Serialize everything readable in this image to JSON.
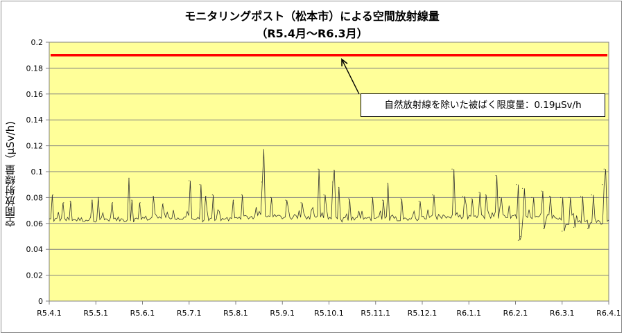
{
  "chart_data": {
    "type": "line",
    "title": "モニタリングポスト（松本市）による空間放射線量",
    "subtitle": "（R5.4月～R6.3月）",
    "xlabel": "",
    "ylabel": "空間放射線量（μSv/h)",
    "ylim": [
      0,
      0.2
    ],
    "yticks": [
      "0",
      "0.02",
      "0.04",
      "0.06",
      "0.08",
      "0.1",
      "0.12",
      "0.14",
      "0.16",
      "0.18",
      "0.2"
    ],
    "xticks": [
      "R5.4.1",
      "R5.5.1",
      "R5.6.1",
      "R5.7.1",
      "R5.8.1",
      "R5.9.1",
      "R5.10.1",
      "R5.11.1",
      "R5.12.1",
      "R6.1.1",
      "R6.2.1",
      "R6.3.1",
      "R6.4.1"
    ],
    "grid": "horizontal",
    "plot_background": "#ffff99",
    "series": [
      {
        "color": "#333333",
        "baseline_by_month": [
          0.063,
          0.063,
          0.064,
          0.063,
          0.065,
          0.065,
          0.063,
          0.064,
          0.065,
          0.065,
          0.064,
          0.061
        ],
        "peaks": [
          {
            "x": 0.08,
            "y": 0.082
          },
          {
            "x": 0.31,
            "y": 0.076
          },
          {
            "x": 0.45,
            "y": 0.077
          },
          {
            "x": 0.92,
            "y": 0.078
          },
          {
            "x": 1.05,
            "y": 0.08
          },
          {
            "x": 1.36,
            "y": 0.076
          },
          {
            "x": 1.71,
            "y": 0.095
          },
          {
            "x": 1.77,
            "y": 0.078
          },
          {
            "x": 1.95,
            "y": 0.076
          },
          {
            "x": 2.23,
            "y": 0.081
          },
          {
            "x": 2.44,
            "y": 0.075
          },
          {
            "x": 3.0,
            "y": 0.093
          },
          {
            "x": 3.23,
            "y": 0.09
          },
          {
            "x": 3.36,
            "y": 0.081
          },
          {
            "x": 3.5,
            "y": 0.082
          },
          {
            "x": 3.95,
            "y": 0.078
          },
          {
            "x": 4.13,
            "y": 0.082
          },
          {
            "x": 4.56,
            "y": 0.092
          },
          {
            "x": 4.6,
            "y": 0.117
          },
          {
            "x": 4.75,
            "y": 0.08
          },
          {
            "x": 5.07,
            "y": 0.078
          },
          {
            "x": 5.4,
            "y": 0.076
          },
          {
            "x": 5.77,
            "y": 0.102
          },
          {
            "x": 5.89,
            "y": 0.082
          },
          {
            "x": 6.08,
            "y": 0.092
          },
          {
            "x": 6.11,
            "y": 0.101
          },
          {
            "x": 6.21,
            "y": 0.088
          },
          {
            "x": 6.42,
            "y": 0.079
          },
          {
            "x": 6.92,
            "y": 0.08
          },
          {
            "x": 7.15,
            "y": 0.078
          },
          {
            "x": 7.26,
            "y": 0.091
          },
          {
            "x": 7.54,
            "y": 0.079
          },
          {
            "x": 7.93,
            "y": 0.077
          },
          {
            "x": 8.22,
            "y": 0.082
          },
          {
            "x": 8.64,
            "y": 0.102
          },
          {
            "x": 8.87,
            "y": 0.081
          },
          {
            "x": 9.05,
            "y": 0.079
          },
          {
            "x": 9.22,
            "y": 0.084
          },
          {
            "x": 9.36,
            "y": 0.082
          },
          {
            "x": 9.58,
            "y": 0.097
          },
          {
            "x": 9.66,
            "y": 0.08
          },
          {
            "x": 10.02,
            "y": 0.09
          },
          {
            "x": 10.15,
            "y": 0.087
          },
          {
            "x": 10.35,
            "y": 0.08
          },
          {
            "x": 10.56,
            "y": 0.085
          },
          {
            "x": 10.73,
            "y": 0.081
          },
          {
            "x": 10.97,
            "y": 0.08
          },
          {
            "x": 11.15,
            "y": 0.08
          },
          {
            "x": 11.4,
            "y": 0.081
          },
          {
            "x": 11.63,
            "y": 0.082
          },
          {
            "x": 11.86,
            "y": 0.09
          },
          {
            "x": 11.9,
            "y": 0.102
          }
        ],
        "dips": [
          {
            "x": 10.06,
            "y": 0.047
          },
          {
            "x": 10.1,
            "y": 0.05
          },
          {
            "x": 10.6,
            "y": 0.056
          },
          {
            "x": 11.0,
            "y": 0.054
          },
          {
            "x": 11.25,
            "y": 0.057
          },
          {
            "x": 11.55,
            "y": 0.056
          }
        ]
      }
    ],
    "threshold": {
      "value": 0.19,
      "color": "#ff0000",
      "label": "自然放射線を除いた被ばく限度量：0.19μSv/h"
    }
  }
}
